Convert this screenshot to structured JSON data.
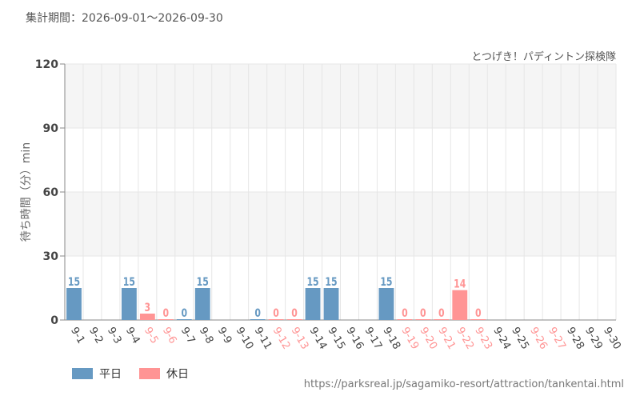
{
  "header": {
    "period": "集計期間：2026-09-01～2026-09-30",
    "source": "とつげき！パディントン探検隊"
  },
  "footer": {
    "url": "https://parksreal.jp/sagamiko-resort/attraction/tankentai.html"
  },
  "colors": {
    "weekday": "#6699c2",
    "holiday": "#ff9494",
    "grid": "#e6e6e6",
    "band": "#f5f5f5"
  },
  "chart_data": {
    "type": "bar",
    "title": "",
    "xlabel": "",
    "ylabel": "待ち時間（分）min",
    "ylim": [
      0,
      120
    ],
    "yticks": [
      0,
      30,
      60,
      90,
      120
    ],
    "categories": [
      "9-1",
      "9-2",
      "9-3",
      "9-4",
      "9-5",
      "9-6",
      "9-7",
      "9-8",
      "9-9",
      "9-10",
      "9-11",
      "9-12",
      "9-13",
      "9-14",
      "9-15",
      "9-16",
      "9-17",
      "9-18",
      "9-19",
      "9-20",
      "9-21",
      "9-22",
      "9-23",
      "9-24",
      "9-25",
      "9-26",
      "9-27",
      "9-28",
      "9-29",
      "9-30"
    ],
    "holiday": [
      false,
      false,
      false,
      false,
      true,
      true,
      false,
      false,
      false,
      false,
      false,
      true,
      true,
      false,
      false,
      false,
      false,
      false,
      true,
      true,
      true,
      true,
      true,
      false,
      false,
      true,
      true,
      false,
      false,
      false
    ],
    "values": [
      15,
      null,
      null,
      15,
      3,
      0,
      0,
      15,
      null,
      null,
      0,
      0,
      0,
      15,
      15,
      null,
      null,
      15,
      0,
      0,
      0,
      14,
      0,
      null,
      null,
      null,
      null,
      null,
      null,
      null
    ],
    "legend": [
      {
        "key": "weekday",
        "label": "平日"
      },
      {
        "key": "holiday",
        "label": "休日"
      }
    ],
    "legend_position": "bottom-left",
    "grid": true
  }
}
